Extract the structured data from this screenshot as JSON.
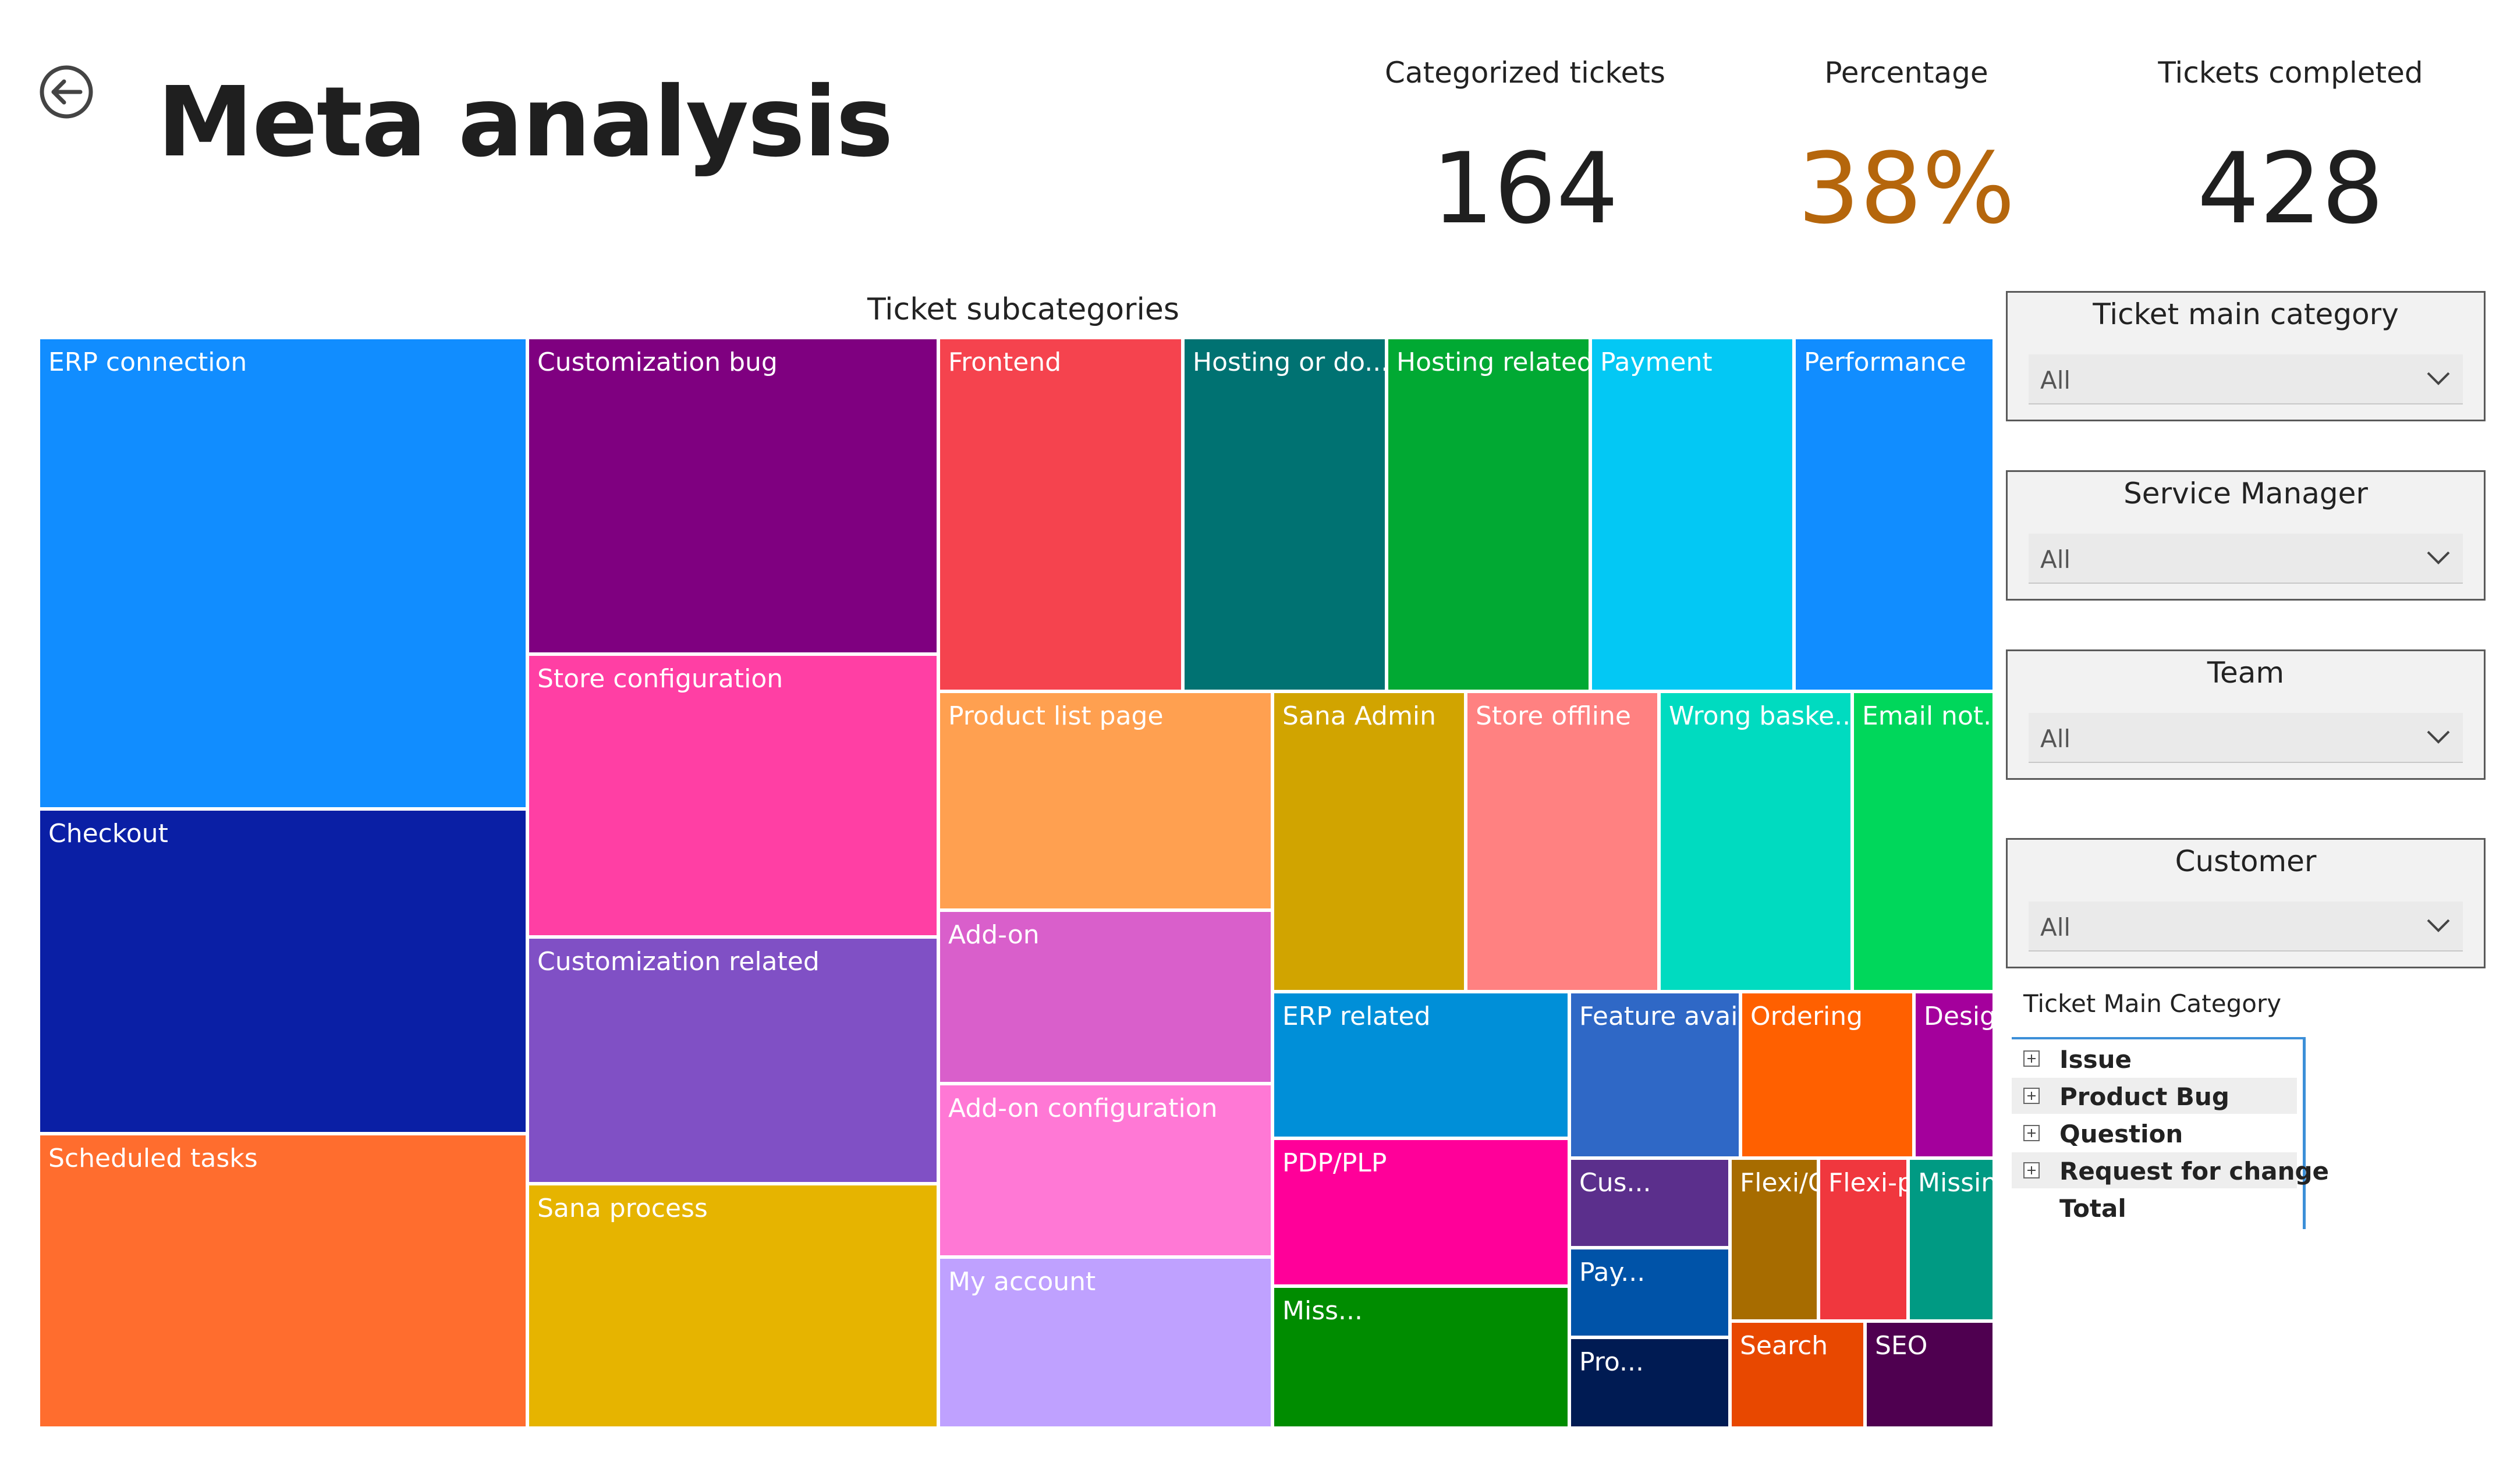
{
  "page_title": "Meta analysis",
  "kpis": {
    "categorized": {
      "label": "Categorized tickets",
      "value": "164"
    },
    "percentage": {
      "label": "Percentage",
      "value": "38%",
      "color": "#b5660c"
    },
    "completed": {
      "label": "Tickets completed",
      "value": "428"
    }
  },
  "treemap": {
    "title": "Ticket subcategories",
    "tiles": [
      {
        "label": "ERP connection",
        "color": "#118dff"
      },
      {
        "label": "Checkout",
        "color": "#0a1fa5"
      },
      {
        "label": "Scheduled tasks",
        "color": "#ff6d2e"
      },
      {
        "label": "Customization bug",
        "color": "#7f0080"
      },
      {
        "label": "Store configuration",
        "color": "#ff3fa4"
      },
      {
        "label": "Customization related",
        "color": "#8050c5"
      },
      {
        "label": "Sana process",
        "color": "#e6b400"
      },
      {
        "label": "Frontend",
        "color": "#f5434e"
      },
      {
        "label": "Hosting or do...",
        "color": "#007272"
      },
      {
        "label": "Hosting related",
        "color": "#01a933"
      },
      {
        "label": "Payment",
        "color": "#03c8f4"
      },
      {
        "label": "Performance",
        "color": "#118dff"
      },
      {
        "label": "Product list page",
        "color": "#ffa050"
      },
      {
        "label": "Sana Admin",
        "color": "#d1a400"
      },
      {
        "label": "Store offline",
        "color": "#ff8181"
      },
      {
        "label": "Wrong baske...",
        "color": "#00dbc0"
      },
      {
        "label": "Email not...",
        "color": "#00d75b"
      },
      {
        "label": "Add-on",
        "color": "#d95fcb"
      },
      {
        "label": "Add-on configuration",
        "color": "#ff78d5"
      },
      {
        "label": "My account",
        "color": "#bfa1ff"
      },
      {
        "label": "ERP related",
        "color": "#008fd8"
      },
      {
        "label": "Feature availability",
        "color": "#2f68c6"
      },
      {
        "label": "Ordering",
        "color": "#ff6000"
      },
      {
        "label": "Design",
        "color": "#a4009c"
      },
      {
        "label": "PDP/PLP",
        "color": "#ff0099"
      },
      {
        "label": "Cus...",
        "color": "#5b2f8c"
      },
      {
        "label": "Flexi/Cont...",
        "color": "#a76c00"
      },
      {
        "label": "Flexi-pages",
        "color": "#f0373e"
      },
      {
        "label": "Missing/w...",
        "color": "#009a83"
      },
      {
        "label": "Miss...",
        "color": "#008c00"
      },
      {
        "label": "Pay...",
        "color": "#0053a8"
      },
      {
        "label": "Pro...",
        "color": "#001b53"
      },
      {
        "label": "Search",
        "color": "#e84800"
      },
      {
        "label": "SEO",
        "color": "#4f0050"
      }
    ]
  },
  "slicers": [
    {
      "title": "Ticket main category",
      "value": "All"
    },
    {
      "title": "Service Manager",
      "value": "All"
    },
    {
      "title": "Team",
      "value": "All"
    },
    {
      "title": "Customer",
      "value": "All"
    }
  ],
  "matrix": {
    "title": "Ticket Main Category",
    "rows": [
      {
        "label": "Issue",
        "expandable": true
      },
      {
        "label": "Product Bug",
        "expandable": true
      },
      {
        "label": "Question",
        "expandable": true
      },
      {
        "label": "Request for change",
        "expandable": true
      },
      {
        "label": "Total",
        "expandable": false
      }
    ]
  }
}
